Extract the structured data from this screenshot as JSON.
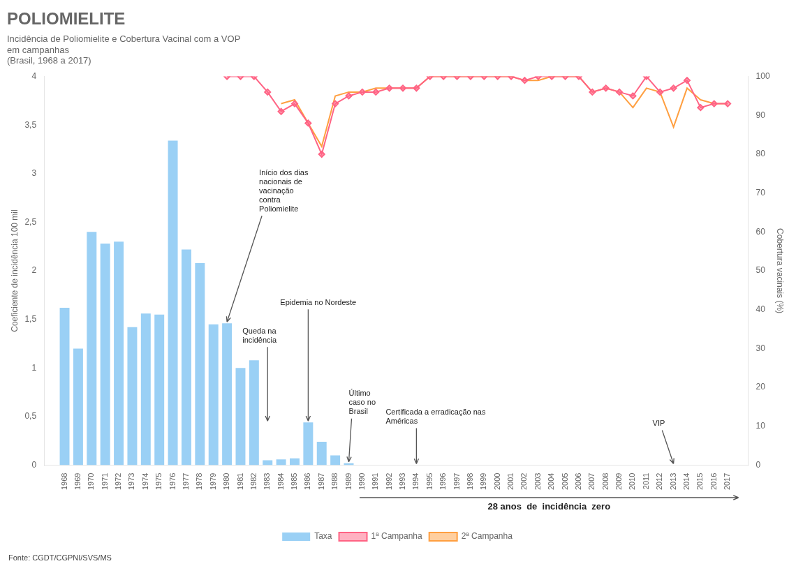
{
  "chart_data": {
    "type": "bar",
    "title": "POLIOMIELITE",
    "subtitle": [
      "Incidência de Poliomielite e Cobertura Vacinal com a VOP",
      "em campanhas",
      "(Brasil, 1968 a 2017)"
    ],
    "source": "Fonte: CGDT/CGPNI/SVS/MS",
    "y_label": "Coeficiente de incidência 100 mil",
    "y2_label": "Cobertura vacinais (%)",
    "xlim": [
      1967.0,
      2018.0
    ],
    "xticks": [
      1968,
      1969,
      1970,
      1971,
      1972,
      1973,
      1974,
      1975,
      1976,
      1977,
      1978,
      1979,
      1980,
      1981,
      1982,
      1983,
      1984,
      1985,
      1986,
      1987,
      1988,
      1989,
      1990,
      1991,
      1992,
      1993,
      1994,
      1995,
      1996,
      1997,
      1998,
      1999,
      2000,
      2001,
      2002,
      2003,
      2004,
      2005,
      2006,
      2007,
      2008,
      2009,
      2010,
      2011,
      2012,
      2013,
      2014,
      2015,
      2016,
      2017
    ],
    "ylim": [
      0,
      4.0
    ],
    "yticks": [
      0,
      {
        "value": 0.5,
        "label": "0,5"
      },
      1,
      {
        "value": 1.5,
        "label": "1,5"
      },
      2,
      {
        "value": 2.5,
        "label": "2,5"
      },
      3,
      {
        "value": 3.5,
        "label": "3,5"
      },
      4
    ],
    "y2lim": [
      0,
      100
    ],
    "y2ticks": [
      0,
      10,
      20,
      30,
      40,
      50,
      60,
      70,
      80,
      90,
      100
    ],
    "grid": false,
    "legend": "bottom",
    "series": [
      {
        "name": "Taxa",
        "type": "bar",
        "x": [
          1968,
          1969,
          1970,
          1971,
          1972,
          1973,
          1974,
          1975,
          1976,
          1977,
          1978,
          1979,
          1980,
          1981,
          1982,
          1983,
          1984,
          1985,
          1986,
          1987,
          1988,
          1989,
          1990,
          1991,
          1992,
          1993,
          1994,
          1995,
          1996,
          1997,
          1998,
          1999,
          2000,
          2001,
          2002,
          2003,
          2004,
          2005,
          2006,
          2007,
          2008,
          2009,
          2010,
          2011,
          2012,
          2013,
          2014,
          2015,
          2016,
          2017
        ],
        "values": [
          1.62,
          1.2,
          2.4,
          2.28,
          2.3,
          1.42,
          1.56,
          1.55,
          3.34,
          2.22,
          2.08,
          1.45,
          1.46,
          1.0,
          1.08,
          0.05,
          0.06,
          0.07,
          0.44,
          0.24,
          0.1,
          0.02,
          0.0,
          0.0,
          0.0,
          0.0,
          0.0,
          0.0,
          0.0,
          0.0,
          0.0,
          0.0,
          0.0,
          0.0,
          0.0,
          0.0,
          0.0,
          0.0,
          0.0,
          0.0,
          0.0,
          0.0,
          0.0,
          0.0,
          0.0,
          0.0,
          0.0,
          0.0,
          0.0,
          0.0
        ]
      },
      {
        "name": "1ª Campanha",
        "type": "line",
        "axis": "y2",
        "marker": "diamond",
        "x": [
          1980,
          1981,
          1982,
          1983,
          1984,
          1985,
          1986,
          1987,
          1988,
          1989,
          1990,
          1991,
          1992,
          1993,
          1994,
          1995,
          1996,
          1997,
          1998,
          1999,
          2000,
          2001,
          2002,
          2003,
          2004,
          2005,
          2006,
          2007,
          2008,
          2009,
          2010,
          2011,
          2012,
          2013,
          2014,
          2015,
          2016,
          2017
        ],
        "values": [
          100,
          100,
          100,
          96,
          91,
          93,
          88,
          80,
          93,
          95,
          96,
          96,
          97,
          97,
          97,
          100,
          100,
          100,
          100,
          100,
          100,
          100,
          99,
          100,
          100,
          100,
          100,
          96,
          97,
          96,
          95,
          100,
          96,
          97,
          99,
          92,
          93,
          93
        ]
      },
      {
        "name": "2ª Campanha",
        "type": "line",
        "axis": "y2",
        "marker": "none",
        "x": [
          1984,
          1985,
          1986,
          1987,
          1988,
          1989,
          1990,
          1991,
          1992,
          1993,
          1994,
          1995,
          1996,
          1997,
          1998,
          1999,
          2000,
          2001,
          2002,
          2003,
          2004,
          2005,
          2006,
          2007,
          2008,
          2009,
          2010,
          2011,
          2012,
          2013,
          2014,
          2015,
          2016,
          2017
        ],
        "values": [
          93,
          94,
          88,
          82,
          95,
          96,
          96,
          97,
          97,
          97,
          97,
          100,
          100,
          100,
          100,
          100,
          100,
          100,
          99,
          99,
          100,
          100,
          100,
          96,
          97,
          96,
          92,
          97,
          96,
          87,
          97,
          94,
          93,
          93
        ]
      }
    ],
    "annotations": [
      {
        "text": "Início dos dias\nnacionais de\nvacinação\ncontra\nPoliomielite",
        "x": 1980,
        "y": 1.46
      },
      {
        "text": "Queda na\nincidência",
        "x": 1983,
        "y": 0.44
      },
      {
        "text": "Epidemia no Nordeste",
        "x": 1986,
        "y": 0.44
      },
      {
        "text": "Último\ncaso no\nBrasil",
        "x": 1989,
        "y": 0.02
      },
      {
        "text": "Certificada a erradicação nas\nAméricas",
        "x": 1994,
        "y": 0.0
      },
      {
        "text": "VIP",
        "x": 2013,
        "y": 0.0
      },
      {
        "text": "28 anos  de  incidência  zero",
        "x_from": 1989.8,
        "x_to": 2017.8
      }
    ]
  }
}
